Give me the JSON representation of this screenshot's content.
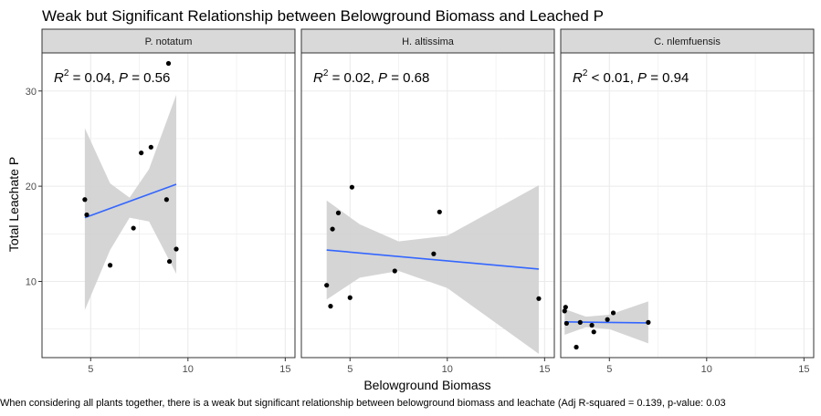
{
  "chart_data": {
    "type": "scatter",
    "title": "Weak but Significant Relationship between Belowground Biomass and Leached P",
    "xlabel": "Belowground Biomass",
    "ylabel": "Total Leachate P",
    "caption": "When considering all plants together, there is a weak but significant relationship between belowground biomass and leachate (Adj R-squared = 0.139, p-value: 0.03",
    "xlim": [
      2.5,
      15.5
    ],
    "ylim": [
      2.0,
      34.0
    ],
    "x_ticks": [
      5,
      10,
      15
    ],
    "y_ticks": [
      10,
      20,
      30
    ],
    "grid": true,
    "facets": [
      {
        "name": "P. notatum",
        "annotation": {
          "r2_label": "R",
          "r2_sup": "2",
          "r2_rel": " = 0.04, ",
          "p_label": "P",
          "p_rel": " = 0.56"
        },
        "points": [
          {
            "x": 4.7,
            "y": 18.6
          },
          {
            "x": 4.8,
            "y": 17.0
          },
          {
            "x": 6.0,
            "y": 11.7
          },
          {
            "x": 7.2,
            "y": 15.6
          },
          {
            "x": 7.6,
            "y": 23.5
          },
          {
            "x": 8.1,
            "y": 24.1
          },
          {
            "x": 8.9,
            "y": 18.6
          },
          {
            "x": 9.0,
            "y": 32.9
          },
          {
            "x": 9.05,
            "y": 12.1
          },
          {
            "x": 9.4,
            "y": 13.4
          }
        ],
        "fit": {
          "x0": 4.7,
          "y0": 16.7,
          "x1": 9.4,
          "y1": 20.2
        },
        "ci_upper": [
          {
            "x": 4.7,
            "y": 26.1
          },
          {
            "x": 6.0,
            "y": 20.3
          },
          {
            "x": 7.0,
            "y": 18.8
          },
          {
            "x": 8.0,
            "y": 21.8
          },
          {
            "x": 9.4,
            "y": 29.6
          }
        ],
        "ci_lower": [
          {
            "x": 4.7,
            "y": 7.0
          },
          {
            "x": 6.0,
            "y": 13.3
          },
          {
            "x": 7.0,
            "y": 16.7
          },
          {
            "x": 8.0,
            "y": 16.3
          },
          {
            "x": 9.4,
            "y": 10.8
          }
        ]
      },
      {
        "name": "H. altissima",
        "annotation": {
          "r2_label": "R",
          "r2_sup": "2",
          "r2_rel": " = 0.02, ",
          "p_label": "P",
          "p_rel": " = 0.68"
        },
        "points": [
          {
            "x": 3.8,
            "y": 9.6
          },
          {
            "x": 4.0,
            "y": 7.4
          },
          {
            "x": 4.1,
            "y": 15.5
          },
          {
            "x": 4.4,
            "y": 17.2
          },
          {
            "x": 5.0,
            "y": 8.3
          },
          {
            "x": 5.1,
            "y": 19.9
          },
          {
            "x": 7.3,
            "y": 11.1
          },
          {
            "x": 9.3,
            "y": 12.9
          },
          {
            "x": 9.6,
            "y": 17.3
          },
          {
            "x": 14.7,
            "y": 8.2
          }
        ],
        "fit": {
          "x0": 3.8,
          "y0": 13.3,
          "x1": 14.7,
          "y1": 11.3
        },
        "ci_upper": [
          {
            "x": 3.8,
            "y": 18.5
          },
          {
            "x": 5.5,
            "y": 16.0
          },
          {
            "x": 7.5,
            "y": 14.2
          },
          {
            "x": 10.0,
            "y": 14.8
          },
          {
            "x": 14.7,
            "y": 20.1
          }
        ],
        "ci_lower": [
          {
            "x": 3.8,
            "y": 8.1
          },
          {
            "x": 5.5,
            "y": 10.4
          },
          {
            "x": 7.5,
            "y": 11.1
          },
          {
            "x": 10.0,
            "y": 9.3
          },
          {
            "x": 14.7,
            "y": 2.4
          }
        ]
      },
      {
        "name": "C. nlemfuensis",
        "annotation": {
          "r2_label": "R",
          "r2_sup": "2",
          "r2_rel": " < 0.01, ",
          "p_label": "P",
          "p_rel": " = 0.94"
        },
        "points": [
          {
            "x": 2.7,
            "y": 6.9
          },
          {
            "x": 2.75,
            "y": 7.3
          },
          {
            "x": 2.8,
            "y": 5.6
          },
          {
            "x": 3.3,
            "y": 3.1
          },
          {
            "x": 3.5,
            "y": 5.7
          },
          {
            "x": 4.1,
            "y": 5.4
          },
          {
            "x": 4.2,
            "y": 4.7
          },
          {
            "x": 4.9,
            "y": 6.0
          },
          {
            "x": 5.2,
            "y": 6.7
          },
          {
            "x": 7.0,
            "y": 5.7
          }
        ],
        "fit": {
          "x0": 2.7,
          "y0": 5.75,
          "x1": 7.0,
          "y1": 5.65
        },
        "ci_upper": [
          {
            "x": 2.7,
            "y": 7.1
          },
          {
            "x": 3.8,
            "y": 6.3
          },
          {
            "x": 5.0,
            "y": 6.5
          },
          {
            "x": 7.0,
            "y": 7.9
          }
        ],
        "ci_lower": [
          {
            "x": 2.7,
            "y": 4.4
          },
          {
            "x": 3.8,
            "y": 5.2
          },
          {
            "x": 5.0,
            "y": 5.0
          },
          {
            "x": 7.0,
            "y": 3.5
          }
        ]
      }
    ],
    "colors": {
      "panel_bg": "#ffffff",
      "grid": "#ebebeb",
      "panel_border": "#333333",
      "strip_bg": "#d9d9d9",
      "point": "#000000",
      "fit_line": "#3366ff",
      "ci_fill": "#d3d3d3"
    }
  }
}
